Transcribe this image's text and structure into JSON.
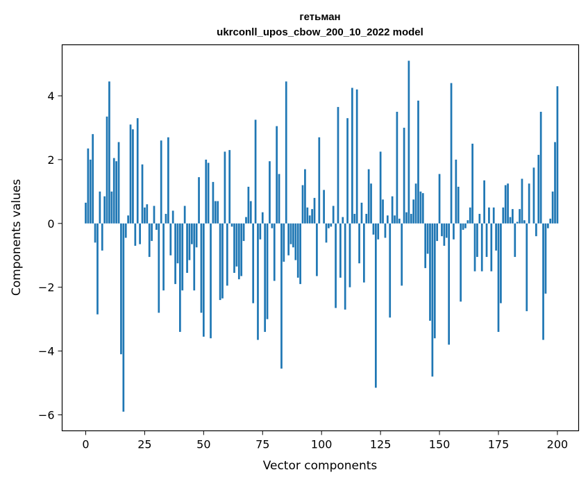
{
  "chart_data": {
    "type": "bar",
    "title_line1": "гетьман",
    "title_line2": "ukrconll_upos_cbow_200_10_2022 model",
    "xlabel": "Vector components",
    "ylabel": "Components values",
    "xlim": [
      -10,
      209
    ],
    "ylim": [
      -6.5,
      5.6
    ],
    "xticks": [
      0,
      25,
      50,
      75,
      100,
      125,
      150,
      175,
      200
    ],
    "yticks": [
      -6,
      -4,
      -2,
      0,
      2,
      4
    ],
    "xtick_labels": [
      "0",
      "25",
      "50",
      "75",
      "100",
      "125",
      "150",
      "175",
      "200"
    ],
    "ytick_labels": [
      "−6",
      "−4",
      "−2",
      "0",
      "2",
      "4"
    ],
    "bar_color": "#1f77b4",
    "grid": false,
    "values": [
      0.65,
      2.35,
      2.0,
      2.8,
      -0.6,
      -2.85,
      1.0,
      -0.85,
      0.85,
      3.35,
      4.45,
      1.0,
      2.05,
      1.95,
      2.55,
      -4.1,
      -5.9,
      -0.45,
      0.25,
      3.1,
      2.95,
      -0.7,
      3.3,
      -0.65,
      1.85,
      0.5,
      0.6,
      -1.05,
      -0.55,
      0.55,
      -0.2,
      -2.8,
      2.6,
      -2.1,
      0.3,
      2.7,
      -1.0,
      0.4,
      -1.9,
      -1.25,
      -3.4,
      -2.1,
      0.55,
      -1.55,
      -1.15,
      -0.65,
      -2.1,
      -0.75,
      1.45,
      -2.8,
      -3.55,
      2.0,
      1.9,
      -3.6,
      1.3,
      0.7,
      0.7,
      -2.4,
      -2.35,
      2.25,
      -1.95,
      2.3,
      -0.1,
      -1.55,
      -1.35,
      -1.75,
      -1.65,
      -0.55,
      0.2,
      1.15,
      0.7,
      -2.5,
      3.25,
      -3.65,
      -0.5,
      0.35,
      -3.4,
      -3.0,
      1.95,
      -0.15,
      -1.8,
      3.05,
      1.55,
      -4.55,
      -1.2,
      4.45,
      -1.0,
      -0.65,
      -0.75,
      -1.15,
      -1.7,
      -1.9,
      1.2,
      1.7,
      0.5,
      0.25,
      0.45,
      0.8,
      -1.65,
      2.7,
      0.0,
      1.05,
      -0.6,
      -0.15,
      -0.1,
      0.55,
      -2.65,
      3.65,
      -1.7,
      0.2,
      -2.7,
      3.3,
      -2.0,
      4.25,
      0.3,
      4.2,
      -1.25,
      0.65,
      -1.85,
      0.3,
      1.7,
      1.25,
      -0.35,
      -5.15,
      -0.5,
      2.25,
      0.75,
      -0.45,
      0.25,
      -2.95,
      0.85,
      0.25,
      3.5,
      0.15,
      -1.95,
      3.0,
      0.35,
      5.1,
      0.3,
      0.75,
      1.25,
      3.85,
      1.0,
      0.95,
      -1.4,
      -0.95,
      -3.05,
      -4.8,
      -3.6,
      -0.55,
      1.55,
      -0.4,
      -0.7,
      -0.45,
      -3.8,
      4.4,
      -0.5,
      2.0,
      1.15,
      -2.45,
      -0.2,
      -0.15,
      0.1,
      0.5,
      2.5,
      -1.5,
      -1.05,
      0.3,
      -1.5,
      1.35,
      -1.05,
      0.5,
      -1.5,
      0.5,
      -0.85,
      -3.4,
      -2.5,
      0.5,
      1.2,
      1.25,
      0.2,
      0.45,
      -1.05,
      0.05,
      0.45,
      1.4,
      0.1,
      -2.75,
      1.25,
      0.0,
      1.75,
      -0.4,
      2.15,
      3.5,
      -3.65,
      -2.2,
      -0.15,
      0.15,
      1.0,
      2.55,
      4.3
    ]
  }
}
